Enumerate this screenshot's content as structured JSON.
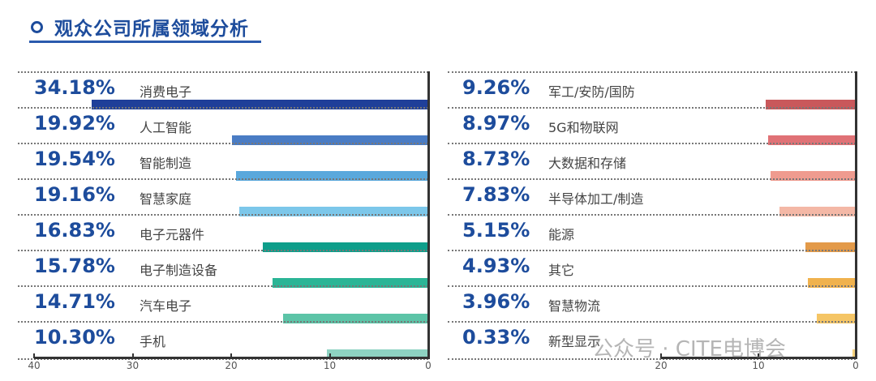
{
  "title": "观众公司所属领域分析",
  "watermark": "公众号 · CITE电博会",
  "chart_data": [
    {
      "type": "bar",
      "orientation": "horizontal",
      "xlim": [
        40,
        0
      ],
      "ticks": [
        "40",
        "30",
        "20",
        "10",
        "0"
      ],
      "categories": [
        "消费电子",
        "人工智能",
        "智能制造",
        "智慧家庭",
        "电子元器件",
        "电子制造设备",
        "汽车电子",
        "手机"
      ],
      "values": [
        34.18,
        19.92,
        19.54,
        19.16,
        16.83,
        15.78,
        14.71,
        10.3
      ],
      "labels": [
        "34.18%",
        "19.92%",
        "19.54%",
        "19.16%",
        "16.83%",
        "15.78%",
        "14.71%",
        "10.30%"
      ],
      "colors": [
        "#1f3f99",
        "#4a7cc4",
        "#5aa8dc",
        "#7cc7ea",
        "#0e9e8a",
        "#2bb596",
        "#5cc4a7",
        "#8ed3c2"
      ]
    },
    {
      "type": "bar",
      "orientation": "horizontal",
      "xlim": [
        40,
        0
      ],
      "ticks": [
        "20",
        "10",
        "0"
      ],
      "categories": [
        "军工/安防/国防",
        "5G和物联网",
        "大数据和存储",
        "半导体加工/制造",
        "能源",
        "其它",
        "智慧物流",
        "新型显示"
      ],
      "values": [
        9.26,
        8.97,
        8.73,
        7.83,
        5.15,
        4.93,
        3.96,
        0.33
      ],
      "labels": [
        "9.26%",
        "8.97%",
        "8.73%",
        "7.83%",
        "5.15%",
        "4.93%",
        "3.96%",
        "0.33%"
      ],
      "colors": [
        "#c9585b",
        "#e07276",
        "#ef9b8f",
        "#f4b8a6",
        "#e39a49",
        "#f0b24e",
        "#f5c565",
        "#f6d27c"
      ]
    }
  ]
}
